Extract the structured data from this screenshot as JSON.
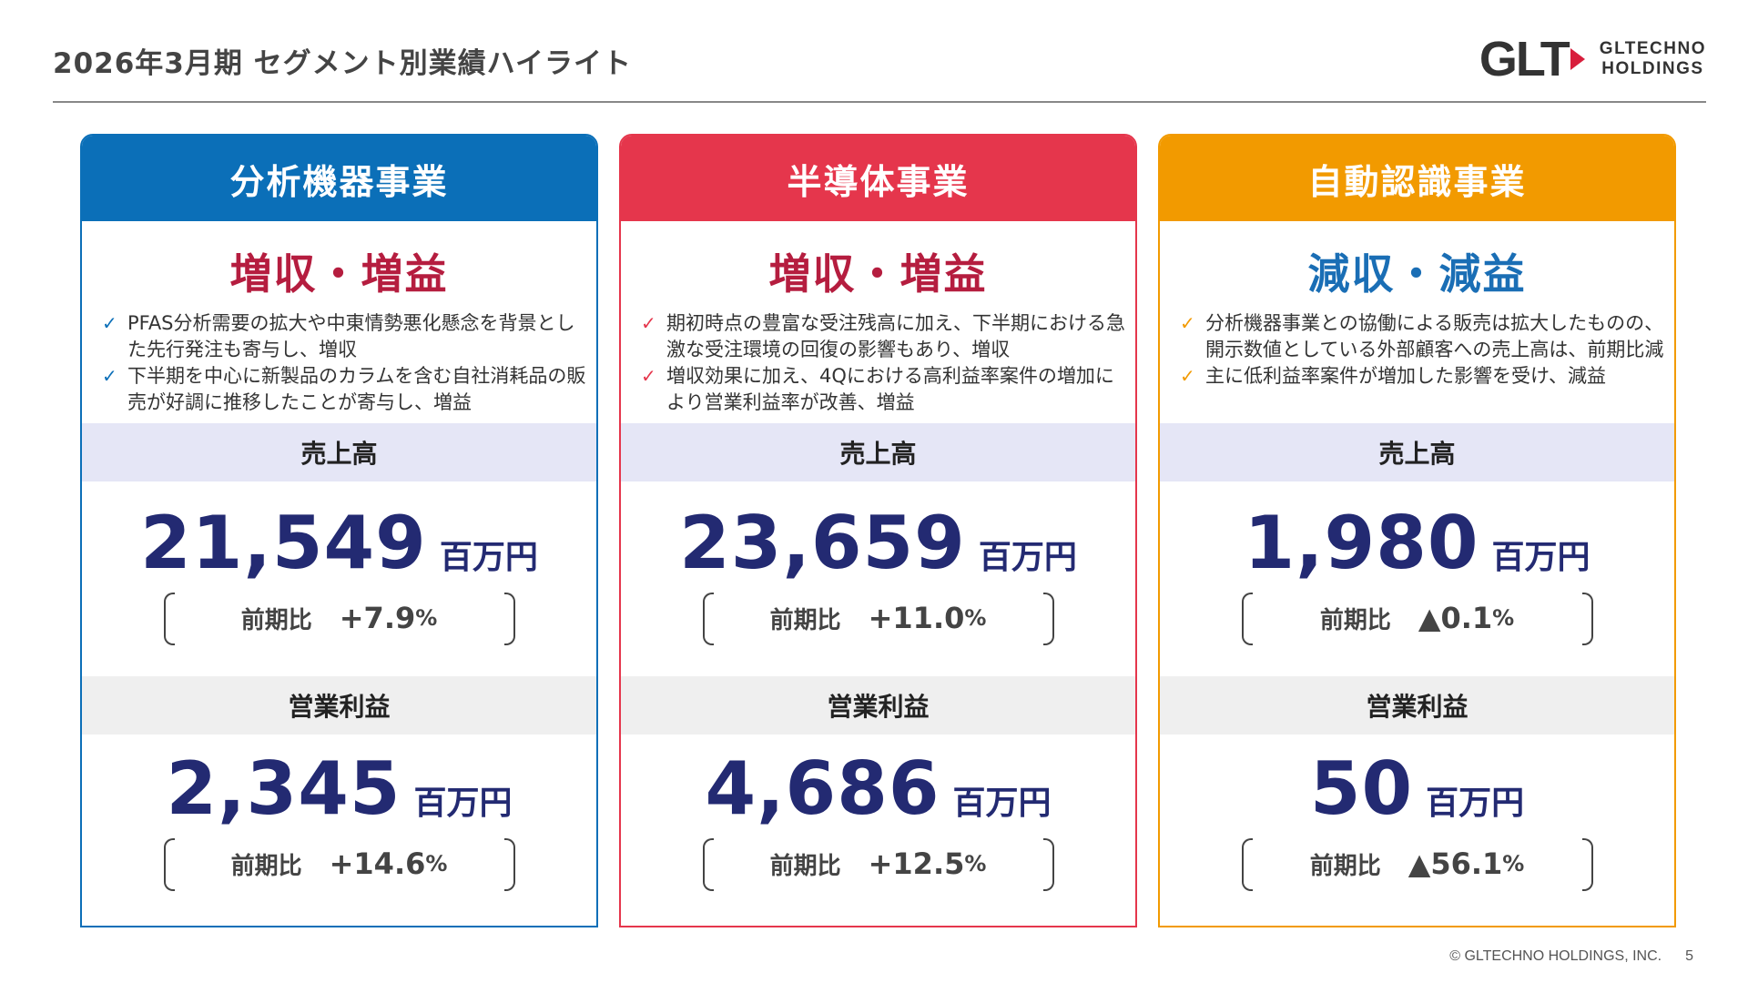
{
  "header": {
    "title": "2026年3月期 セグメント別業績ハイライト",
    "logo_mark": "GLT",
    "logo_line1": "GLTECHNO",
    "logo_line2": "HOLDINGS"
  },
  "colors": {
    "analytical": "#0b6fb8",
    "semiconductor": "#e5364c",
    "auto_id": "#f29a00",
    "increase": "#b51d3f",
    "decrease": "#1a6eb5",
    "number": "#232a72"
  },
  "segments": [
    {
      "name": "分析機器事業",
      "verdict": "増収・増益",
      "bullets": [
        "PFAS分析需要の拡大や中東情勢悪化懸念を背景とした先行発注も寄与し、増収",
        "下半期を中心に新製品のカラムを含む自社消耗品の販売が好調に推移したことが寄与し、増益"
      ],
      "sales_label": "売上高",
      "sales_value": "21,549",
      "sales_unit": "百万円",
      "sales_yoy_label": "前期比",
      "sales_yoy": "+7.9",
      "profit_label": "営業利益",
      "profit_value": "2,345",
      "profit_unit": "百万円",
      "profit_yoy_label": "前期比",
      "profit_yoy": "+14.6",
      "pct": "%"
    },
    {
      "name": "半導体事業",
      "verdict": "増収・増益",
      "bullets": [
        "期初時点の豊富な受注残高に加え、下半期における急激な受注環境の回復の影響もあり、増収",
        "増収効果に加え、4Qにおける高利益率案件の増加により営業利益率が改善、増益"
      ],
      "sales_label": "売上高",
      "sales_value": "23,659",
      "sales_unit": "百万円",
      "sales_yoy_label": "前期比",
      "sales_yoy": "+11.0",
      "profit_label": "営業利益",
      "profit_value": "4,686",
      "profit_unit": "百万円",
      "profit_yoy_label": "前期比",
      "profit_yoy": "+12.5",
      "pct": "%"
    },
    {
      "name": "自動認識事業",
      "verdict": "減収・減益",
      "bullets": [
        "分析機器事業との協働による販売は拡大したものの、開示数値としている外部顧客への売上高は、前期比減",
        "主に低利益率案件が増加した影響を受け、減益"
      ],
      "sales_label": "売上高",
      "sales_value": "1,980",
      "sales_unit": "百万円",
      "sales_yoy_label": "前期比",
      "sales_yoy": "▲0.1",
      "profit_label": "営業利益",
      "profit_value": "50",
      "profit_unit": "百万円",
      "profit_yoy_label": "前期比",
      "profit_yoy": "▲56.1",
      "pct": "%"
    }
  ],
  "footer": {
    "copyright": "© GLTECHNO HOLDINGS, INC.",
    "page": "5"
  }
}
